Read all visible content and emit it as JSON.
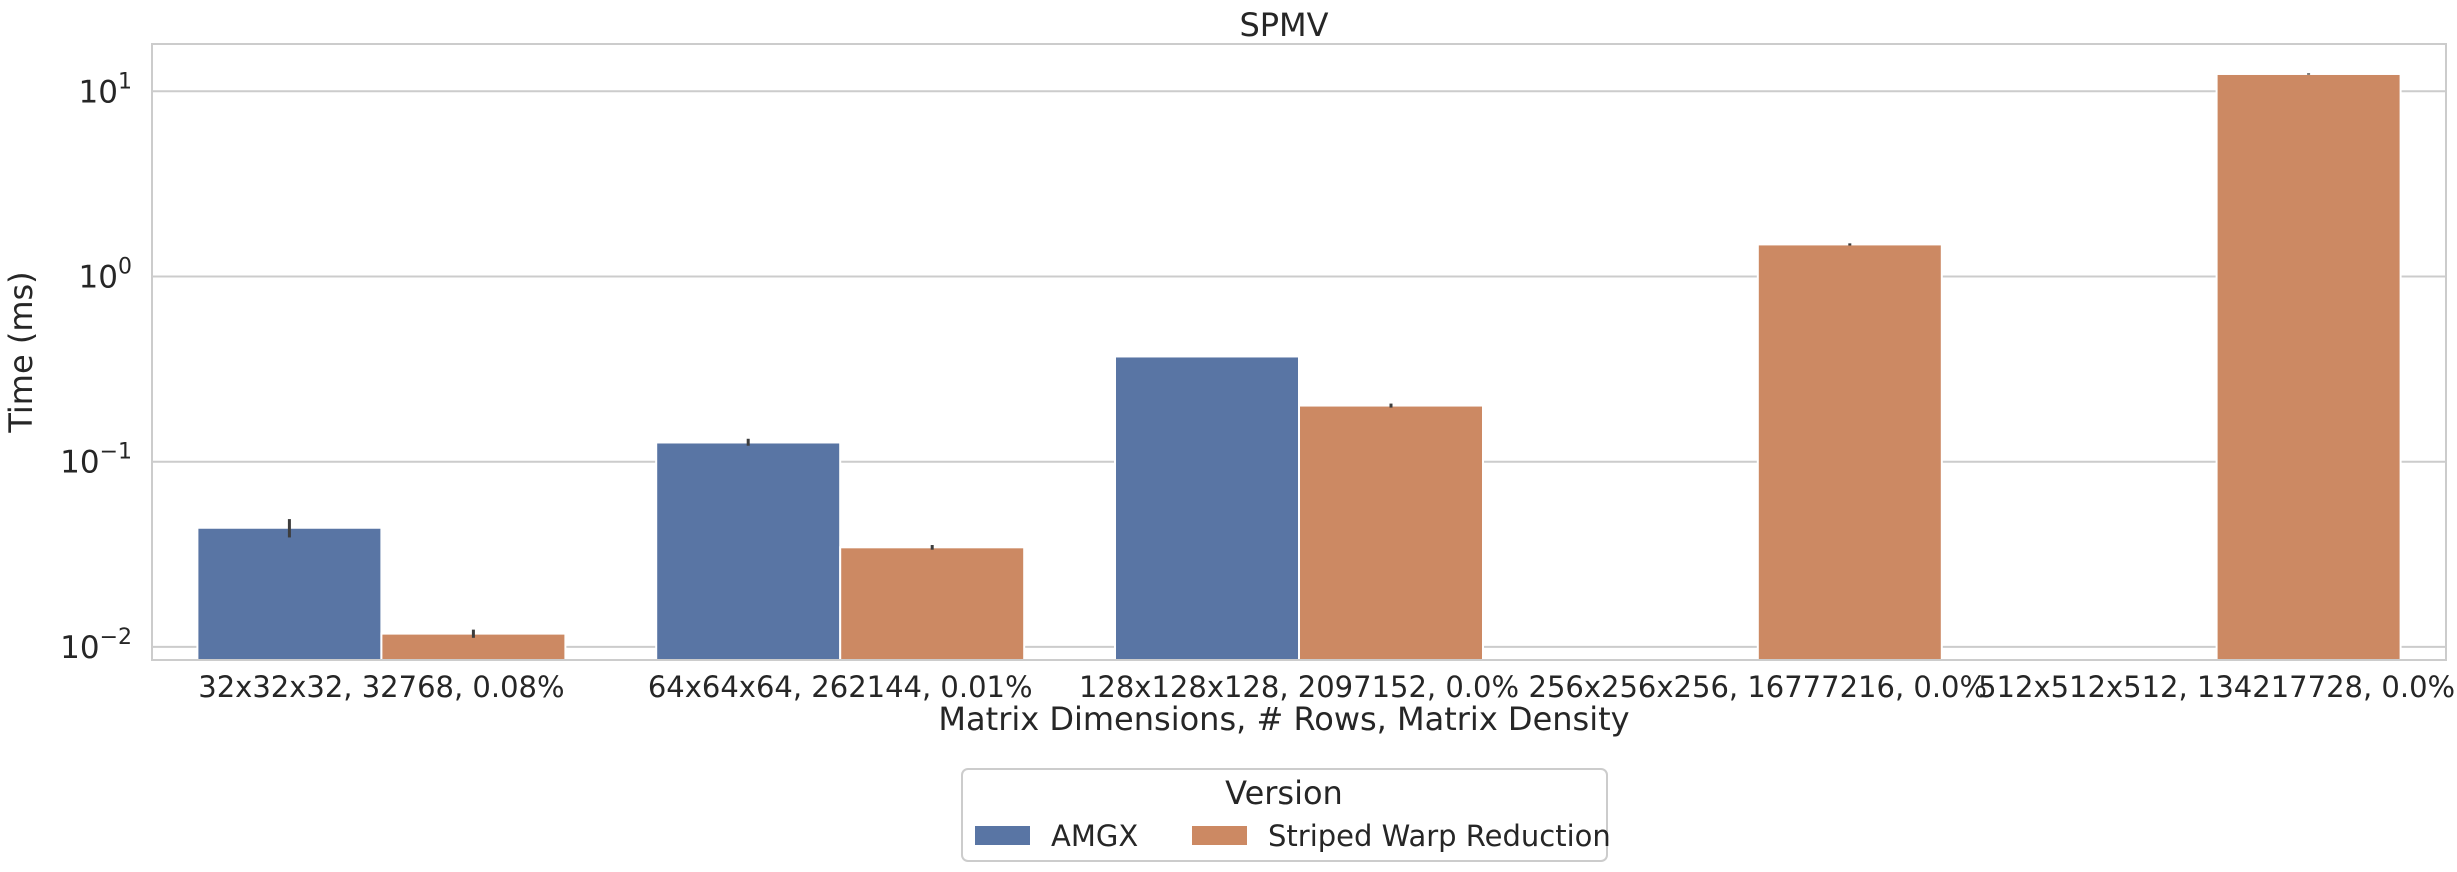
{
  "chart_data": {
    "type": "bar",
    "title": "SPMV",
    "xlabel": "Matrix Dimensions, # Rows, Matrix Density",
    "ylabel": "Time (ms)",
    "yscale": "log",
    "ylim": [
      0.0085,
      18
    ],
    "grid": "horizontal",
    "categories": [
      "32x32x32, 32768, 0.08%",
      "64x64x64, 262144, 0.01%",
      "128x128x128, 2097152, 0.0%",
      "256x256x256, 16777216, 0.0%",
      "512x512x512, 134217728, 0.0%"
    ],
    "y_ticks": [
      {
        "value": 0.01,
        "base": "10",
        "exp": "−2"
      },
      {
        "value": 0.1,
        "base": "10",
        "exp": "−1"
      },
      {
        "value": 1,
        "base": "10",
        "exp": "0"
      },
      {
        "value": 10,
        "base": "10",
        "exp": "1"
      }
    ],
    "series": [
      {
        "name": "AMGX",
        "color": "#5975a4",
        "values": [
          0.044,
          0.127,
          0.37,
          null,
          null
        ],
        "error_low": [
          0.039,
          0.122,
          null,
          null,
          null
        ],
        "error_high": [
          0.049,
          0.133,
          null,
          null,
          null
        ]
      },
      {
        "name": "Striped Warp Reduction",
        "color": "#cc8963",
        "values": [
          0.0118,
          0.0345,
          0.201,
          1.49,
          12.4
        ],
        "error_low": [
          0.0112,
          0.0335,
          0.196,
          1.47,
          12.3
        ],
        "error_high": [
          0.0124,
          0.0355,
          0.206,
          1.51,
          12.5
        ]
      }
    ],
    "legend": {
      "title": "Version",
      "placement": "bottom-center"
    }
  }
}
